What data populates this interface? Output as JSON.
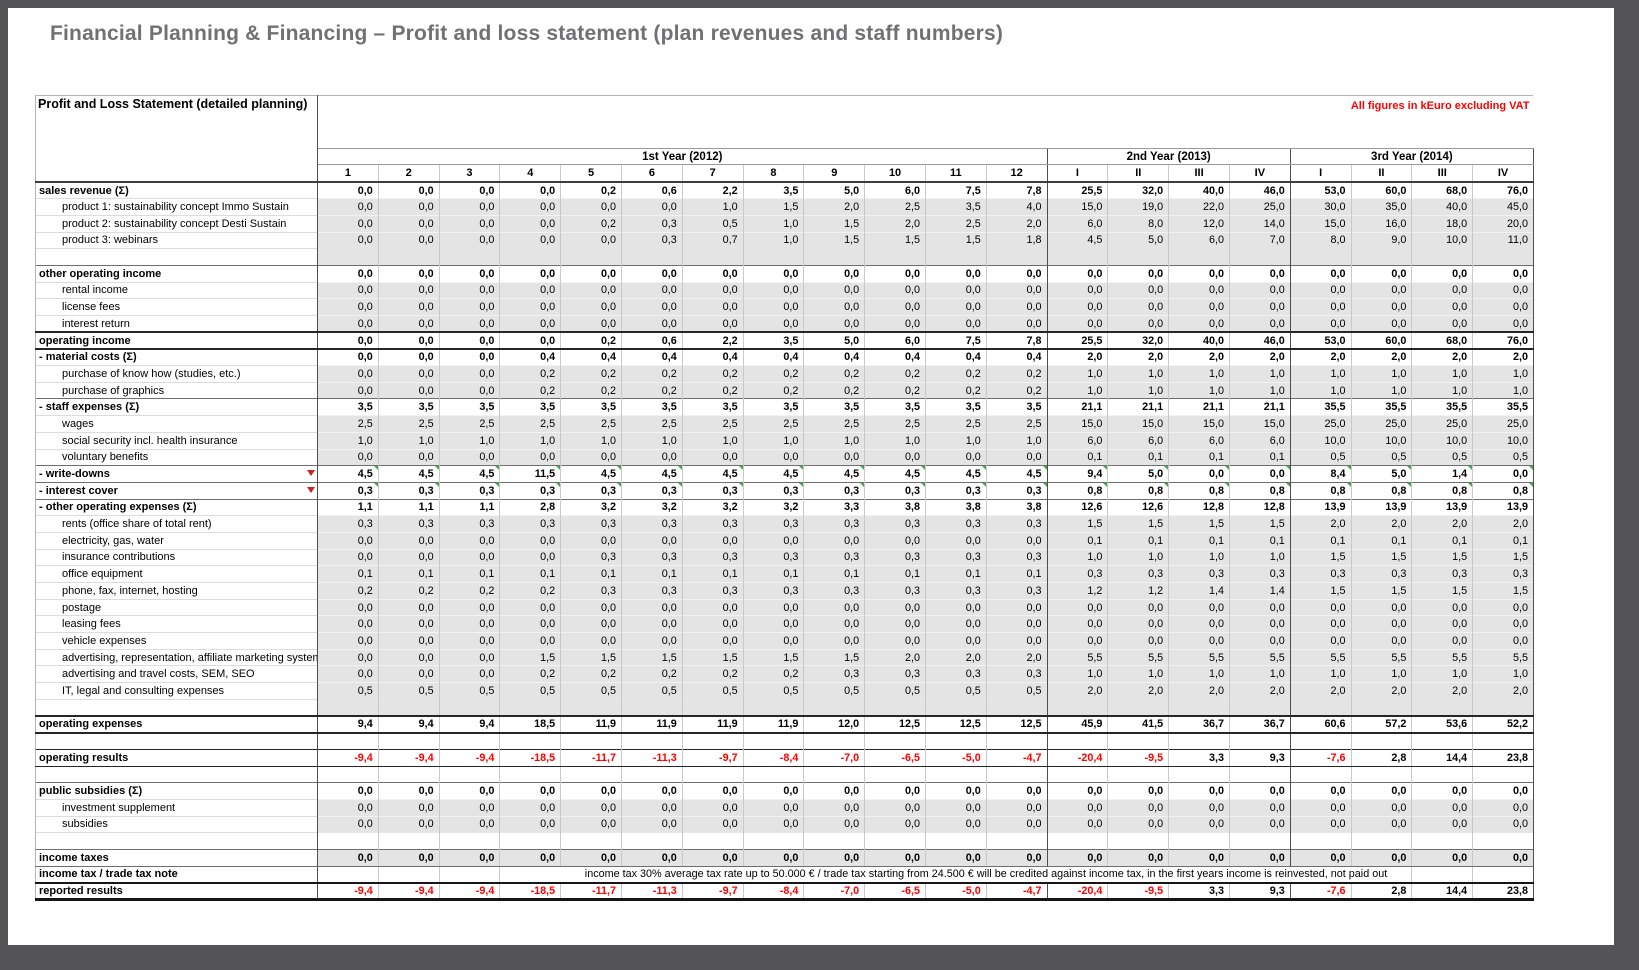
{
  "page": {
    "title": "Financial Planning & Financing – Profit and loss statement (plan revenues and staff numbers)"
  },
  "colors": {
    "title_gray": "#717174",
    "note_red": "#ff0000",
    "negative_red": "#ff0000",
    "detail_row_bg": "#e4e4e4",
    "frame_gray": "#545456"
  },
  "table": {
    "title": "Profit and Loss Statement (detailed planning)",
    "note": "All figures in kEuro excluding VAT",
    "tax_note": "income tax 30%  average tax rate up to 50.000 € / trade tax starting from 24.500 € will be credited against income tax, in the first years income is reinvested, not paid out",
    "year_groups": [
      {
        "label": "1st Year (2012)",
        "cols": [
          "1",
          "2",
          "3",
          "4",
          "5",
          "6",
          "7",
          "8",
          "9",
          "10",
          "11",
          "12"
        ]
      },
      {
        "label": "2nd Year (2013)",
        "cols": [
          "I",
          "II",
          "III",
          "IV"
        ]
      },
      {
        "label": "3rd Year (2014)",
        "cols": [
          "I",
          "II",
          "III",
          "IV"
        ]
      }
    ],
    "rows": [
      {
        "label": "sales revenue (Σ)",
        "style": "section",
        "values": [
          "0,0",
          "0,0",
          "0,0",
          "0,0",
          "0,2",
          "0,6",
          "2,2",
          "3,5",
          "5,0",
          "6,0",
          "7,5",
          "7,8",
          "25,5",
          "32,0",
          "40,0",
          "46,0",
          "53,0",
          "60,0",
          "68,0",
          "76,0"
        ]
      },
      {
        "label": "product 1: sustainability concept Immo Sustain",
        "style": "detail",
        "values": [
          "0,0",
          "0,0",
          "0,0",
          "0,0",
          "0,0",
          "0,0",
          "1,0",
          "1,5",
          "2,0",
          "2,5",
          "3,5",
          "4,0",
          "15,0",
          "19,0",
          "22,0",
          "25,0",
          "30,0",
          "35,0",
          "40,0",
          "45,0"
        ]
      },
      {
        "label": "product 2: sustainability concept Desti Sustain",
        "style": "detail",
        "values": [
          "0,0",
          "0,0",
          "0,0",
          "0,0",
          "0,2",
          "0,3",
          "0,5",
          "1,0",
          "1,5",
          "2,0",
          "2,5",
          "2,0",
          "6,0",
          "8,0",
          "12,0",
          "14,0",
          "15,0",
          "16,0",
          "18,0",
          "20,0"
        ]
      },
      {
        "label": "product 3: webinars",
        "style": "detail",
        "values": [
          "0,0",
          "0,0",
          "0,0",
          "0,0",
          "0,0",
          "0,3",
          "0,7",
          "1,0",
          "1,5",
          "1,5",
          "1,5",
          "1,8",
          "4,5",
          "5,0",
          "6,0",
          "7,0",
          "8,0",
          "9,0",
          "10,0",
          "11,0"
        ]
      },
      {
        "label": "",
        "style": "spacer-gray",
        "values": []
      },
      {
        "label": "other operating income",
        "style": "section",
        "values": [
          "0,0",
          "0,0",
          "0,0",
          "0,0",
          "0,0",
          "0,0",
          "0,0",
          "0,0",
          "0,0",
          "0,0",
          "0,0",
          "0,0",
          "0,0",
          "0,0",
          "0,0",
          "0,0",
          "0,0",
          "0,0",
          "0,0",
          "0,0"
        ]
      },
      {
        "label": "rental income",
        "style": "detail",
        "values": [
          "0,0",
          "0,0",
          "0,0",
          "0,0",
          "0,0",
          "0,0",
          "0,0",
          "0,0",
          "0,0",
          "0,0",
          "0,0",
          "0,0",
          "0,0",
          "0,0",
          "0,0",
          "0,0",
          "0,0",
          "0,0",
          "0,0",
          "0,0"
        ]
      },
      {
        "label": "license fees",
        "style": "detail",
        "values": [
          "0,0",
          "0,0",
          "0,0",
          "0,0",
          "0,0",
          "0,0",
          "0,0",
          "0,0",
          "0,0",
          "0,0",
          "0,0",
          "0,0",
          "0,0",
          "0,0",
          "0,0",
          "0,0",
          "0,0",
          "0,0",
          "0,0",
          "0,0"
        ]
      },
      {
        "label": "interest return",
        "style": "detail",
        "values": [
          "0,0",
          "0,0",
          "0,0",
          "0,0",
          "0,0",
          "0,0",
          "0,0",
          "0,0",
          "0,0",
          "0,0",
          "0,0",
          "0,0",
          "0,0",
          "0,0",
          "0,0",
          "0,0",
          "0,0",
          "0,0",
          "0,0",
          "0,0"
        ]
      },
      {
        "label": "operating income",
        "style": "total",
        "values": [
          "0,0",
          "0,0",
          "0,0",
          "0,0",
          "0,2",
          "0,6",
          "2,2",
          "3,5",
          "5,0",
          "6,0",
          "7,5",
          "7,8",
          "25,5",
          "32,0",
          "40,0",
          "46,0",
          "53,0",
          "60,0",
          "68,0",
          "76,0"
        ]
      },
      {
        "label": "- material costs (Σ)",
        "style": "section",
        "values": [
          "0,0",
          "0,0",
          "0,0",
          "0,4",
          "0,4",
          "0,4",
          "0,4",
          "0,4",
          "0,4",
          "0,4",
          "0,4",
          "0,4",
          "2,0",
          "2,0",
          "2,0",
          "2,0",
          "2,0",
          "2,0",
          "2,0",
          "2,0"
        ]
      },
      {
        "label": "purchase of know how (studies, etc.)",
        "style": "detail",
        "values": [
          "0,0",
          "0,0",
          "0,0",
          "0,2",
          "0,2",
          "0,2",
          "0,2",
          "0,2",
          "0,2",
          "0,2",
          "0,2",
          "0,2",
          "1,0",
          "1,0",
          "1,0",
          "1,0",
          "1,0",
          "1,0",
          "1,0",
          "1,0"
        ]
      },
      {
        "label": "purchase of graphics",
        "style": "detail",
        "values": [
          "0,0",
          "0,0",
          "0,0",
          "0,2",
          "0,2",
          "0,2",
          "0,2",
          "0,2",
          "0,2",
          "0,2",
          "0,2",
          "0,2",
          "1,0",
          "1,0",
          "1,0",
          "1,0",
          "1,0",
          "1,0",
          "1,0",
          "1,0"
        ]
      },
      {
        "label": "- staff expenses (Σ)",
        "style": "section",
        "values": [
          "3,5",
          "3,5",
          "3,5",
          "3,5",
          "3,5",
          "3,5",
          "3,5",
          "3,5",
          "3,5",
          "3,5",
          "3,5",
          "3,5",
          "21,1",
          "21,1",
          "21,1",
          "21,1",
          "35,5",
          "35,5",
          "35,5",
          "35,5"
        ]
      },
      {
        "label": "wages",
        "style": "detail",
        "values": [
          "2,5",
          "2,5",
          "2,5",
          "2,5",
          "2,5",
          "2,5",
          "2,5",
          "2,5",
          "2,5",
          "2,5",
          "2,5",
          "2,5",
          "15,0",
          "15,0",
          "15,0",
          "15,0",
          "25,0",
          "25,0",
          "25,0",
          "25,0"
        ]
      },
      {
        "label": "social security incl. health insurance",
        "style": "detail",
        "values": [
          "1,0",
          "1,0",
          "1,0",
          "1,0",
          "1,0",
          "1,0",
          "1,0",
          "1,0",
          "1,0",
          "1,0",
          "1,0",
          "1,0",
          "6,0",
          "6,0",
          "6,0",
          "6,0",
          "10,0",
          "10,0",
          "10,0",
          "10,0"
        ]
      },
      {
        "label": "voluntary benefits",
        "style": "detail",
        "values": [
          "0,0",
          "0,0",
          "0,0",
          "0,0",
          "0,0",
          "0,0",
          "0,0",
          "0,0",
          "0,0",
          "0,0",
          "0,0",
          "0,0",
          "0,1",
          "0,1",
          "0,1",
          "0,1",
          "0,5",
          "0,5",
          "0,5",
          "0,5"
        ]
      },
      {
        "label": "- write-downs",
        "style": "section",
        "markers": true,
        "values": [
          "4,5",
          "4,5",
          "4,5",
          "11,5",
          "4,5",
          "4,5",
          "4,5",
          "4,5",
          "4,5",
          "4,5",
          "4,5",
          "4,5",
          "9,4",
          "5,0",
          "0,0",
          "0,0",
          "8,4",
          "5,0",
          "1,4",
          "0,0"
        ]
      },
      {
        "label": "- interest cover",
        "style": "section",
        "markers": true,
        "values": [
          "0,3",
          "0,3",
          "0,3",
          "0,3",
          "0,3",
          "0,3",
          "0,3",
          "0,3",
          "0,3",
          "0,3",
          "0,3",
          "0,3",
          "0,8",
          "0,8",
          "0,8",
          "0,8",
          "0,8",
          "0,8",
          "0,8",
          "0,8"
        ]
      },
      {
        "label": "- other operating expenses (Σ)",
        "style": "section",
        "values": [
          "1,1",
          "1,1",
          "1,1",
          "2,8",
          "3,2",
          "3,2",
          "3,2",
          "3,2",
          "3,3",
          "3,8",
          "3,8",
          "3,8",
          "12,6",
          "12,6",
          "12,8",
          "12,8",
          "13,9",
          "13,9",
          "13,9",
          "13,9"
        ]
      },
      {
        "label": "rents (office share of total rent)",
        "style": "detail",
        "values": [
          "0,3",
          "0,3",
          "0,3",
          "0,3",
          "0,3",
          "0,3",
          "0,3",
          "0,3",
          "0,3",
          "0,3",
          "0,3",
          "0,3",
          "1,5",
          "1,5",
          "1,5",
          "1,5",
          "2,0",
          "2,0",
          "2,0",
          "2,0"
        ]
      },
      {
        "label": "electricity, gas, water",
        "style": "detail",
        "values": [
          "0,0",
          "0,0",
          "0,0",
          "0,0",
          "0,0",
          "0,0",
          "0,0",
          "0,0",
          "0,0",
          "0,0",
          "0,0",
          "0,0",
          "0,1",
          "0,1",
          "0,1",
          "0,1",
          "0,1",
          "0,1",
          "0,1",
          "0,1"
        ]
      },
      {
        "label": "insurance contributions",
        "style": "detail",
        "values": [
          "0,0",
          "0,0",
          "0,0",
          "0,0",
          "0,3",
          "0,3",
          "0,3",
          "0,3",
          "0,3",
          "0,3",
          "0,3",
          "0,3",
          "1,0",
          "1,0",
          "1,0",
          "1,0",
          "1,5",
          "1,5",
          "1,5",
          "1,5"
        ]
      },
      {
        "label": "office equipment",
        "style": "detail",
        "values": [
          "0,1",
          "0,1",
          "0,1",
          "0,1",
          "0,1",
          "0,1",
          "0,1",
          "0,1",
          "0,1",
          "0,1",
          "0,1",
          "0,1",
          "0,3",
          "0,3",
          "0,3",
          "0,3",
          "0,3",
          "0,3",
          "0,3",
          "0,3"
        ]
      },
      {
        "label": "phone, fax, internet, hosting",
        "style": "detail",
        "values": [
          "0,2",
          "0,2",
          "0,2",
          "0,2",
          "0,3",
          "0,3",
          "0,3",
          "0,3",
          "0,3",
          "0,3",
          "0,3",
          "0,3",
          "1,2",
          "1,2",
          "1,4",
          "1,4",
          "1,5",
          "1,5",
          "1,5",
          "1,5"
        ]
      },
      {
        "label": "postage",
        "style": "detail",
        "values": [
          "0,0",
          "0,0",
          "0,0",
          "0,0",
          "0,0",
          "0,0",
          "0,0",
          "0,0",
          "0,0",
          "0,0",
          "0,0",
          "0,0",
          "0,0",
          "0,0",
          "0,0",
          "0,0",
          "0,0",
          "0,0",
          "0,0",
          "0,0"
        ]
      },
      {
        "label": "leasing fees",
        "style": "detail",
        "values": [
          "0,0",
          "0,0",
          "0,0",
          "0,0",
          "0,0",
          "0,0",
          "0,0",
          "0,0",
          "0,0",
          "0,0",
          "0,0",
          "0,0",
          "0,0",
          "0,0",
          "0,0",
          "0,0",
          "0,0",
          "0,0",
          "0,0",
          "0,0"
        ]
      },
      {
        "label": "vehicle expenses",
        "style": "detail",
        "values": [
          "0,0",
          "0,0",
          "0,0",
          "0,0",
          "0,0",
          "0,0",
          "0,0",
          "0,0",
          "0,0",
          "0,0",
          "0,0",
          "0,0",
          "0,0",
          "0,0",
          "0,0",
          "0,0",
          "0,0",
          "0,0",
          "0,0",
          "0,0"
        ]
      },
      {
        "label": "advertising, representation, affiliate marketing system",
        "style": "detail",
        "values": [
          "0,0",
          "0,0",
          "0,0",
          "1,5",
          "1,5",
          "1,5",
          "1,5",
          "1,5",
          "1,5",
          "2,0",
          "2,0",
          "2,0",
          "5,5",
          "5,5",
          "5,5",
          "5,5",
          "5,5",
          "5,5",
          "5,5",
          "5,5"
        ]
      },
      {
        "label": "advertising and travel costs, SEM, SEO",
        "style": "detail",
        "values": [
          "0,0",
          "0,0",
          "0,0",
          "0,2",
          "0,2",
          "0,2",
          "0,2",
          "0,2",
          "0,3",
          "0,3",
          "0,3",
          "0,3",
          "1,0",
          "1,0",
          "1,0",
          "1,0",
          "1,0",
          "1,0",
          "1,0",
          "1,0"
        ]
      },
      {
        "label": "IT, legal and consulting expenses",
        "style": "detail",
        "values": [
          "0,5",
          "0,5",
          "0,5",
          "0,5",
          "0,5",
          "0,5",
          "0,5",
          "0,5",
          "0,5",
          "0,5",
          "0,5",
          "0,5",
          "2,0",
          "2,0",
          "2,0",
          "2,0",
          "2,0",
          "2,0",
          "2,0",
          "2,0"
        ]
      },
      {
        "label": "",
        "style": "spacer-gray",
        "values": []
      },
      {
        "label": "operating expenses",
        "style": "total",
        "values": [
          "9,4",
          "9,4",
          "9,4",
          "18,5",
          "11,9",
          "11,9",
          "11,9",
          "11,9",
          "12,0",
          "12,5",
          "12,5",
          "12,5",
          "45,9",
          "41,5",
          "36,7",
          "36,7",
          "60,6",
          "57,2",
          "53,6",
          "52,2"
        ]
      },
      {
        "label": "",
        "style": "spacer-white",
        "values": []
      },
      {
        "label": "operating results",
        "style": "result",
        "values": [
          "-9,4",
          "-9,4",
          "-9,4",
          "-18,5",
          "-11,7",
          "-11,3",
          "-9,7",
          "-8,4",
          "-7,0",
          "-6,5",
          "-5,0",
          "-4,7",
          "-20,4",
          "-9,5",
          "3,3",
          "9,3",
          "-7,6",
          "2,8",
          "14,4",
          "23,8"
        ]
      },
      {
        "label": "",
        "style": "spacer-white",
        "values": []
      },
      {
        "label": "public subsidies (Σ)",
        "style": "section",
        "values": [
          "0,0",
          "0,0",
          "0,0",
          "0,0",
          "0,0",
          "0,0",
          "0,0",
          "0,0",
          "0,0",
          "0,0",
          "0,0",
          "0,0",
          "0,0",
          "0,0",
          "0,0",
          "0,0",
          "0,0",
          "0,0",
          "0,0",
          "0,0"
        ]
      },
      {
        "label": "investment supplement",
        "style": "detail",
        "values": [
          "0,0",
          "0,0",
          "0,0",
          "0,0",
          "0,0",
          "0,0",
          "0,0",
          "0,0",
          "0,0",
          "0,0",
          "0,0",
          "0,0",
          "0,0",
          "0,0",
          "0,0",
          "0,0",
          "0,0",
          "0,0",
          "0,0",
          "0,0"
        ]
      },
      {
        "label": "subsidies",
        "style": "detail",
        "values": [
          "0,0",
          "0,0",
          "0,0",
          "0,0",
          "0,0",
          "0,0",
          "0,0",
          "0,0",
          "0,0",
          "0,0",
          "0,0",
          "0,0",
          "0,0",
          "0,0",
          "0,0",
          "0,0",
          "0,0",
          "0,0",
          "0,0",
          "0,0"
        ]
      },
      {
        "label": "",
        "style": "spacer-white",
        "values": []
      },
      {
        "label": "income taxes",
        "style": "taxes",
        "values": [
          "0,0",
          "0,0",
          "0,0",
          "0,0",
          "0,0",
          "0,0",
          "0,0",
          "0,0",
          "0,0",
          "0,0",
          "0,0",
          "0,0",
          "0,0",
          "0,0",
          "0,0",
          "0,0",
          "0,0",
          "0,0",
          "0,0",
          "0,0"
        ]
      },
      {
        "label": "income tax / trade tax note",
        "style": "note",
        "values": []
      },
      {
        "label": "reported results",
        "style": "reported",
        "values": [
          "-9,4",
          "-9,4",
          "-9,4",
          "-18,5",
          "-11,7",
          "-11,3",
          "-9,7",
          "-8,4",
          "-7,0",
          "-6,5",
          "-5,0",
          "-4,7",
          "-20,4",
          "-9,5",
          "3,3",
          "9,3",
          "-7,6",
          "2,8",
          "14,4",
          "23,8"
        ]
      }
    ]
  }
}
